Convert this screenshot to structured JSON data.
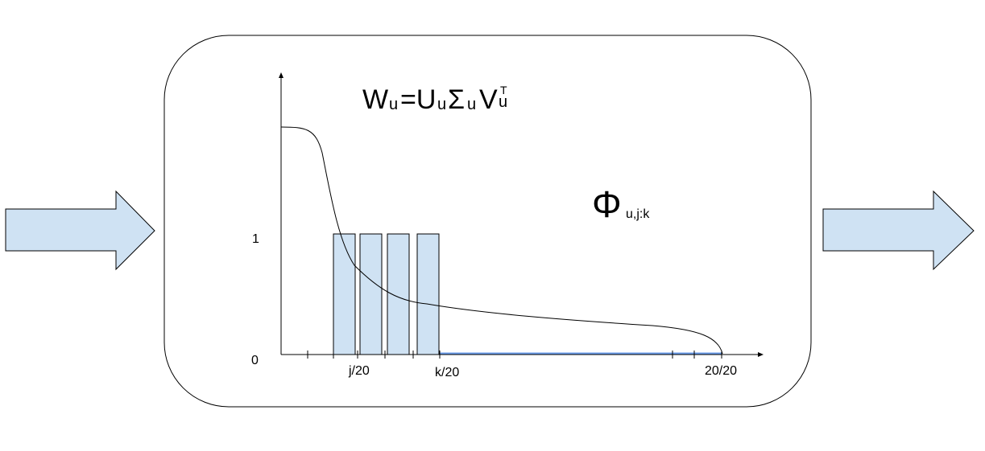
{
  "formula": {
    "w": "W",
    "w_sub": "u",
    "eq": "=U",
    "u_sub": "u",
    "sigma": "Σ",
    "sigma_sub": "u",
    "v": "V",
    "v_sup": "T",
    "v_sub": "u"
  },
  "phi": {
    "symbol": "Φ",
    "subscript": "u,j:k"
  },
  "axis": {
    "y_tick_top": "1",
    "y_tick_zero": "0",
    "x_label_j": "j/20",
    "x_label_k": "k/20",
    "x_label_end": "20/20"
  },
  "colors": {
    "arrow_fill": "#cfe2f3",
    "bar_fill": "#cfe2f3",
    "highlight_line": "#6d9eeb",
    "stroke": "#000000"
  }
}
